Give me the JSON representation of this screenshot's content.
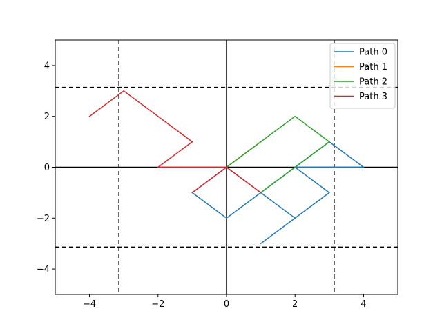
{
  "chart_data": {
    "type": "line",
    "title": "",
    "xlabel": "",
    "ylabel": "",
    "xlim": [
      -5,
      5
    ],
    "ylim": [
      -5,
      5
    ],
    "x_ticks": [
      -4,
      -2,
      0,
      2,
      4
    ],
    "y_ticks": [
      -4,
      -2,
      0,
      2,
      4
    ],
    "x_tick_labels": [
      "−4",
      "−2",
      "0",
      "2",
      "4"
    ],
    "y_tick_labels": [
      "−4",
      "−2",
      "0",
      "2",
      "4"
    ],
    "grid": false,
    "legend_position": "top-right",
    "reference_lines": {
      "solid_axes": [
        {
          "axis": "x",
          "value": 0
        },
        {
          "axis": "y",
          "value": 0
        }
      ],
      "dashed_vertical": [
        -3.1416,
        3.1416
      ],
      "dashed_horizontal": [
        -3.1416,
        3.1416
      ]
    },
    "series": [
      {
        "name": "Path 0",
        "color": "#1f77b4",
        "x": [
          1,
          2,
          1,
          3,
          2,
          4,
          3,
          1,
          0,
          -1,
          0,
          1,
          2,
          3
        ],
        "y": [
          -3,
          -2,
          -3,
          -1,
          0,
          0,
          1,
          -1,
          -2,
          -1,
          0,
          -1,
          -2,
          -1
        ]
      },
      {
        "name": "Path 1",
        "color": "#ff7f0e",
        "x": [
          0,
          1
        ],
        "y": [
          0,
          1
        ]
      },
      {
        "name": "Path 2",
        "color": "#2ca02c",
        "x": [
          0,
          1,
          2,
          3,
          2,
          1,
          2,
          3,
          2,
          1
        ],
        "y": [
          0,
          1,
          2,
          1,
          0,
          -1,
          0,
          1,
          2,
          1
        ]
      },
      {
        "name": "Path 3",
        "color": "#d62728",
        "x": [
          1,
          0,
          -1,
          0,
          1,
          0,
          -2,
          -1,
          -3,
          -4
        ],
        "y": [
          -1,
          0,
          -1,
          0,
          -1,
          0,
          0,
          1,
          3,
          2
        ]
      }
    ]
  }
}
